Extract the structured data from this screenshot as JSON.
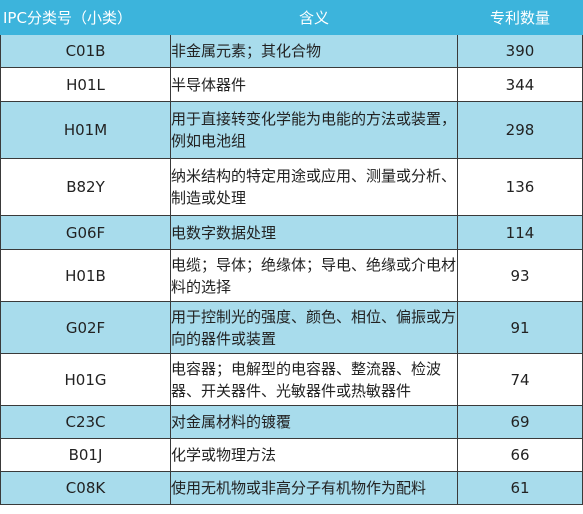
{
  "header": {
    "col_code": "IPC分类号（小类）",
    "col_meaning": "含义",
    "col_count": "专利数量"
  },
  "rows": [
    {
      "code": "C01B",
      "meaning": "非金属元素；其化合物",
      "count": "390"
    },
    {
      "code": "H01L",
      "meaning": "半导体器件",
      "count": "344"
    },
    {
      "code": "H01M",
      "meaning": "用于直接转变化学能为电能的方法或装置，例如电池组",
      "count": "298"
    },
    {
      "code": "B82Y",
      "meaning": "纳米结构的特定用途或应用、测量或分析、制造或处理",
      "count": "136"
    },
    {
      "code": "G06F",
      "meaning": "电数字数据处理",
      "count": "114"
    },
    {
      "code": "H01B",
      "meaning": "电缆；导体；绝缘体；导电、绝缘或介电材料的选择",
      "count": "93"
    },
    {
      "code": "G02F",
      "meaning": "用于控制光的强度、颜色、相位、偏振或方向的器件或装置",
      "count": "91"
    },
    {
      "code": "H01G",
      "meaning": "电容器；电解型的电容器、整流器、检波器、开关器件、光敏器件或热敏器件",
      "count": "74"
    },
    {
      "code": "C23C",
      "meaning": "对金属材料的镀覆",
      "count": "69"
    },
    {
      "code": "B01J",
      "meaning": "化学或物理方法",
      "count": "66"
    },
    {
      "code": "C08K",
      "meaning": "使用无机物或非高分子有机物作为配料",
      "count": "61"
    }
  ],
  "colors": {
    "header_bg": "#3cb4dc",
    "stripe_bg": "#a8dcec",
    "plain_bg": "#ffffff"
  }
}
